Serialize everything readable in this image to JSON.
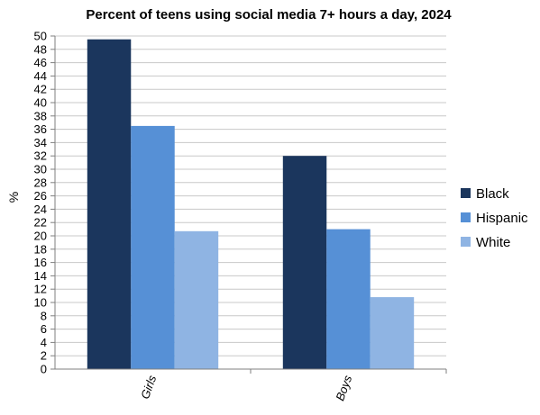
{
  "chart_data": {
    "type": "bar",
    "title": "Percent of teens using social media 7+ hours a day, 2024",
    "xlabel": "",
    "ylabel": "%",
    "ylim": [
      0,
      50
    ],
    "ytick_step": 2,
    "categories": [
      "Girls",
      "Boys"
    ],
    "series": [
      {
        "name": "Black",
        "values": [
          49.5,
          32
        ],
        "color": "#1b365d"
      },
      {
        "name": "Hispanic",
        "values": [
          36.5,
          21
        ],
        "color": "#5690d6"
      },
      {
        "name": "White",
        "values": [
          20.7,
          10.8
        ],
        "color": "#8fb4e3"
      }
    ],
    "grid": true,
    "legend_position": "right"
  }
}
